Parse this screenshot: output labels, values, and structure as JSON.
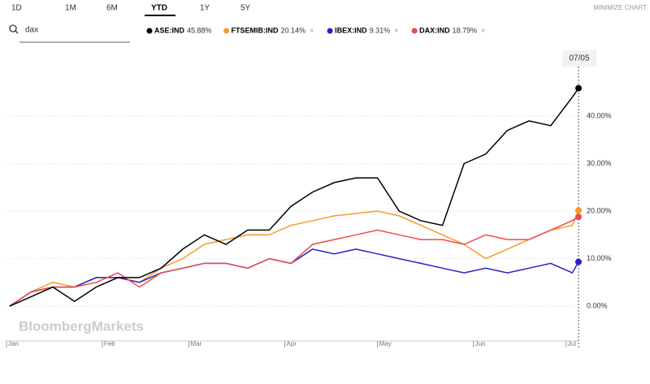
{
  "ui": {
    "tabs": [
      "1D",
      "1M",
      "6M",
      "YTD",
      "1Y",
      "5Y"
    ],
    "active_tab": "YTD",
    "minimize": "MINIMIZE CHART",
    "search": "dax",
    "watermark": "BloombergMarkets"
  },
  "chart_data": {
    "type": "line",
    "x": [
      "01/02",
      "01/09",
      "01/16",
      "01/23",
      "01/30",
      "02/06",
      "02/13",
      "02/20",
      "02/27",
      "03/06",
      "03/13",
      "03/20",
      "03/27",
      "04/03",
      "04/10",
      "04/17",
      "04/24",
      "05/01",
      "05/08",
      "05/15",
      "05/22",
      "05/29",
      "06/05",
      "06/12",
      "06/19",
      "06/26",
      "07/03",
      "07/05"
    ],
    "xlim": [
      "01/01",
      "07/05"
    ],
    "xticks": [
      {
        "value": "01/01",
        "label": "Jan"
      },
      {
        "value": "02/01",
        "label": "Feb"
      },
      {
        "value": "03/01",
        "label": "Mar"
      },
      {
        "value": "04/01",
        "label": "Apr"
      },
      {
        "value": "05/01",
        "label": "May"
      },
      {
        "value": "06/01",
        "label": "Jun"
      },
      {
        "value": "07/01",
        "label": "Jul"
      }
    ],
    "ylim": [
      -7,
      53
    ],
    "yticks": [
      {
        "value": 0,
        "label": "0.00%"
      },
      {
        "value": 10,
        "label": "10.00%"
      },
      {
        "value": 20,
        "label": "20.00%"
      },
      {
        "value": 30,
        "label": "30.00%"
      },
      {
        "value": 40,
        "label": "40.00%"
      }
    ],
    "grid": true,
    "series": [
      {
        "name": "ASE:IND",
        "color": "#000000",
        "values": [
          0,
          2,
          4,
          1,
          4,
          6,
          6,
          8,
          12,
          15,
          13,
          16,
          16,
          21,
          24,
          26,
          27,
          27,
          20,
          18,
          17,
          30,
          32,
          37,
          39,
          38,
          44,
          45.88
        ],
        "value_labels": [
          null,
          null,
          null,
          null,
          null,
          null,
          null,
          null,
          null,
          null,
          null,
          null,
          null,
          null,
          null,
          null,
          null,
          null,
          null,
          null,
          null,
          null,
          null,
          null,
          null,
          null,
          null,
          "45.88%"
        ]
      },
      {
        "name": "FTSEMIB:IND",
        "color": "#f39c2c",
        "values": [
          0,
          3,
          5,
          4,
          6,
          6,
          5,
          8,
          10,
          13,
          14,
          15,
          15,
          17,
          18,
          19,
          19.5,
          20,
          19,
          17,
          15,
          13,
          10,
          12,
          14,
          16,
          17,
          20.14
        ],
        "value_labels": [
          null,
          null,
          null,
          null,
          null,
          null,
          null,
          null,
          null,
          null,
          null,
          null,
          null,
          null,
          null,
          null,
          null,
          null,
          null,
          null,
          null,
          null,
          null,
          null,
          null,
          null,
          null,
          "20.14%"
        ]
      },
      {
        "name": "IBEX:IND",
        "color": "#2a1fc7",
        "values": [
          0,
          3,
          4,
          4,
          6,
          6,
          5,
          7,
          8,
          9,
          9,
          8,
          10,
          9,
          12,
          11,
          12,
          11,
          10,
          9,
          8,
          7,
          8,
          7,
          8,
          9,
          7,
          9.31
        ],
        "value_labels": [
          null,
          null,
          null,
          null,
          null,
          null,
          null,
          null,
          null,
          null,
          null,
          null,
          null,
          null,
          null,
          null,
          null,
          null,
          null,
          null,
          null,
          null,
          null,
          null,
          null,
          null,
          null,
          "9.31%"
        ]
      },
      {
        "name": "DAX:IND",
        "color": "#ec4b4b",
        "values": [
          0,
          3,
          4,
          4,
          5,
          7,
          4,
          7,
          8,
          9,
          9,
          8,
          10,
          9,
          13,
          14,
          15,
          16,
          15,
          14,
          14,
          13,
          15,
          14,
          14,
          16,
          18,
          18.79
        ],
        "value_labels": [
          null,
          null,
          null,
          null,
          null,
          null,
          null,
          null,
          null,
          null,
          null,
          null,
          null,
          null,
          null,
          null,
          null,
          null,
          null,
          null,
          null,
          null,
          null,
          null,
          null,
          null,
          null,
          "18.79%"
        ]
      }
    ]
  }
}
